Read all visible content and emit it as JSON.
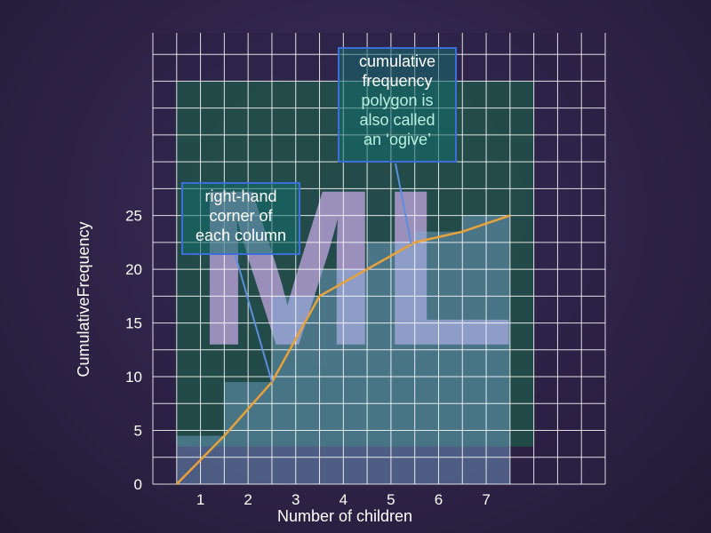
{
  "chart_data": {
    "type": "bar",
    "categories": [
      "1",
      "2",
      "3",
      "4",
      "5",
      "6",
      "7"
    ],
    "values": [
      4.5,
      9.5,
      17.5,
      20,
      22.5,
      23.5,
      25
    ],
    "ogive": {
      "x": [
        0.5,
        1.5,
        2.5,
        3.5,
        4.5,
        5.5,
        6.5,
        7.5
      ],
      "y": [
        0,
        4.5,
        9.5,
        17.5,
        20,
        22.5,
        23.5,
        25
      ]
    },
    "xlabel": "Number of children",
    "ylabel": "CumulativeFrequency",
    "xlim": [
      0,
      9.5
    ],
    "ylim": [
      0,
      42
    ],
    "y_ticks": [
      0,
      5,
      10,
      15,
      20,
      25
    ],
    "x_ticks": [
      1,
      2,
      3,
      4,
      5,
      6,
      7
    ],
    "grid": true,
    "colors": {
      "bar_fill": "#7fb0dc",
      "line": "#e8a23a",
      "grid": "#ffffff",
      "watermark_panel": "#1e5a4a",
      "callout_border": "#3a6fd8",
      "pointer": "#5d8fe0"
    }
  },
  "watermark": {
    "text": "ML"
  },
  "callouts": {
    "right_hand": {
      "lines": [
        "right-hand",
        "corner of",
        "each column"
      ]
    },
    "ogive": {
      "lines": [
        "cumulative",
        "frequency",
        "polygon is",
        "also called",
        "an ‘ogive’"
      ]
    }
  }
}
